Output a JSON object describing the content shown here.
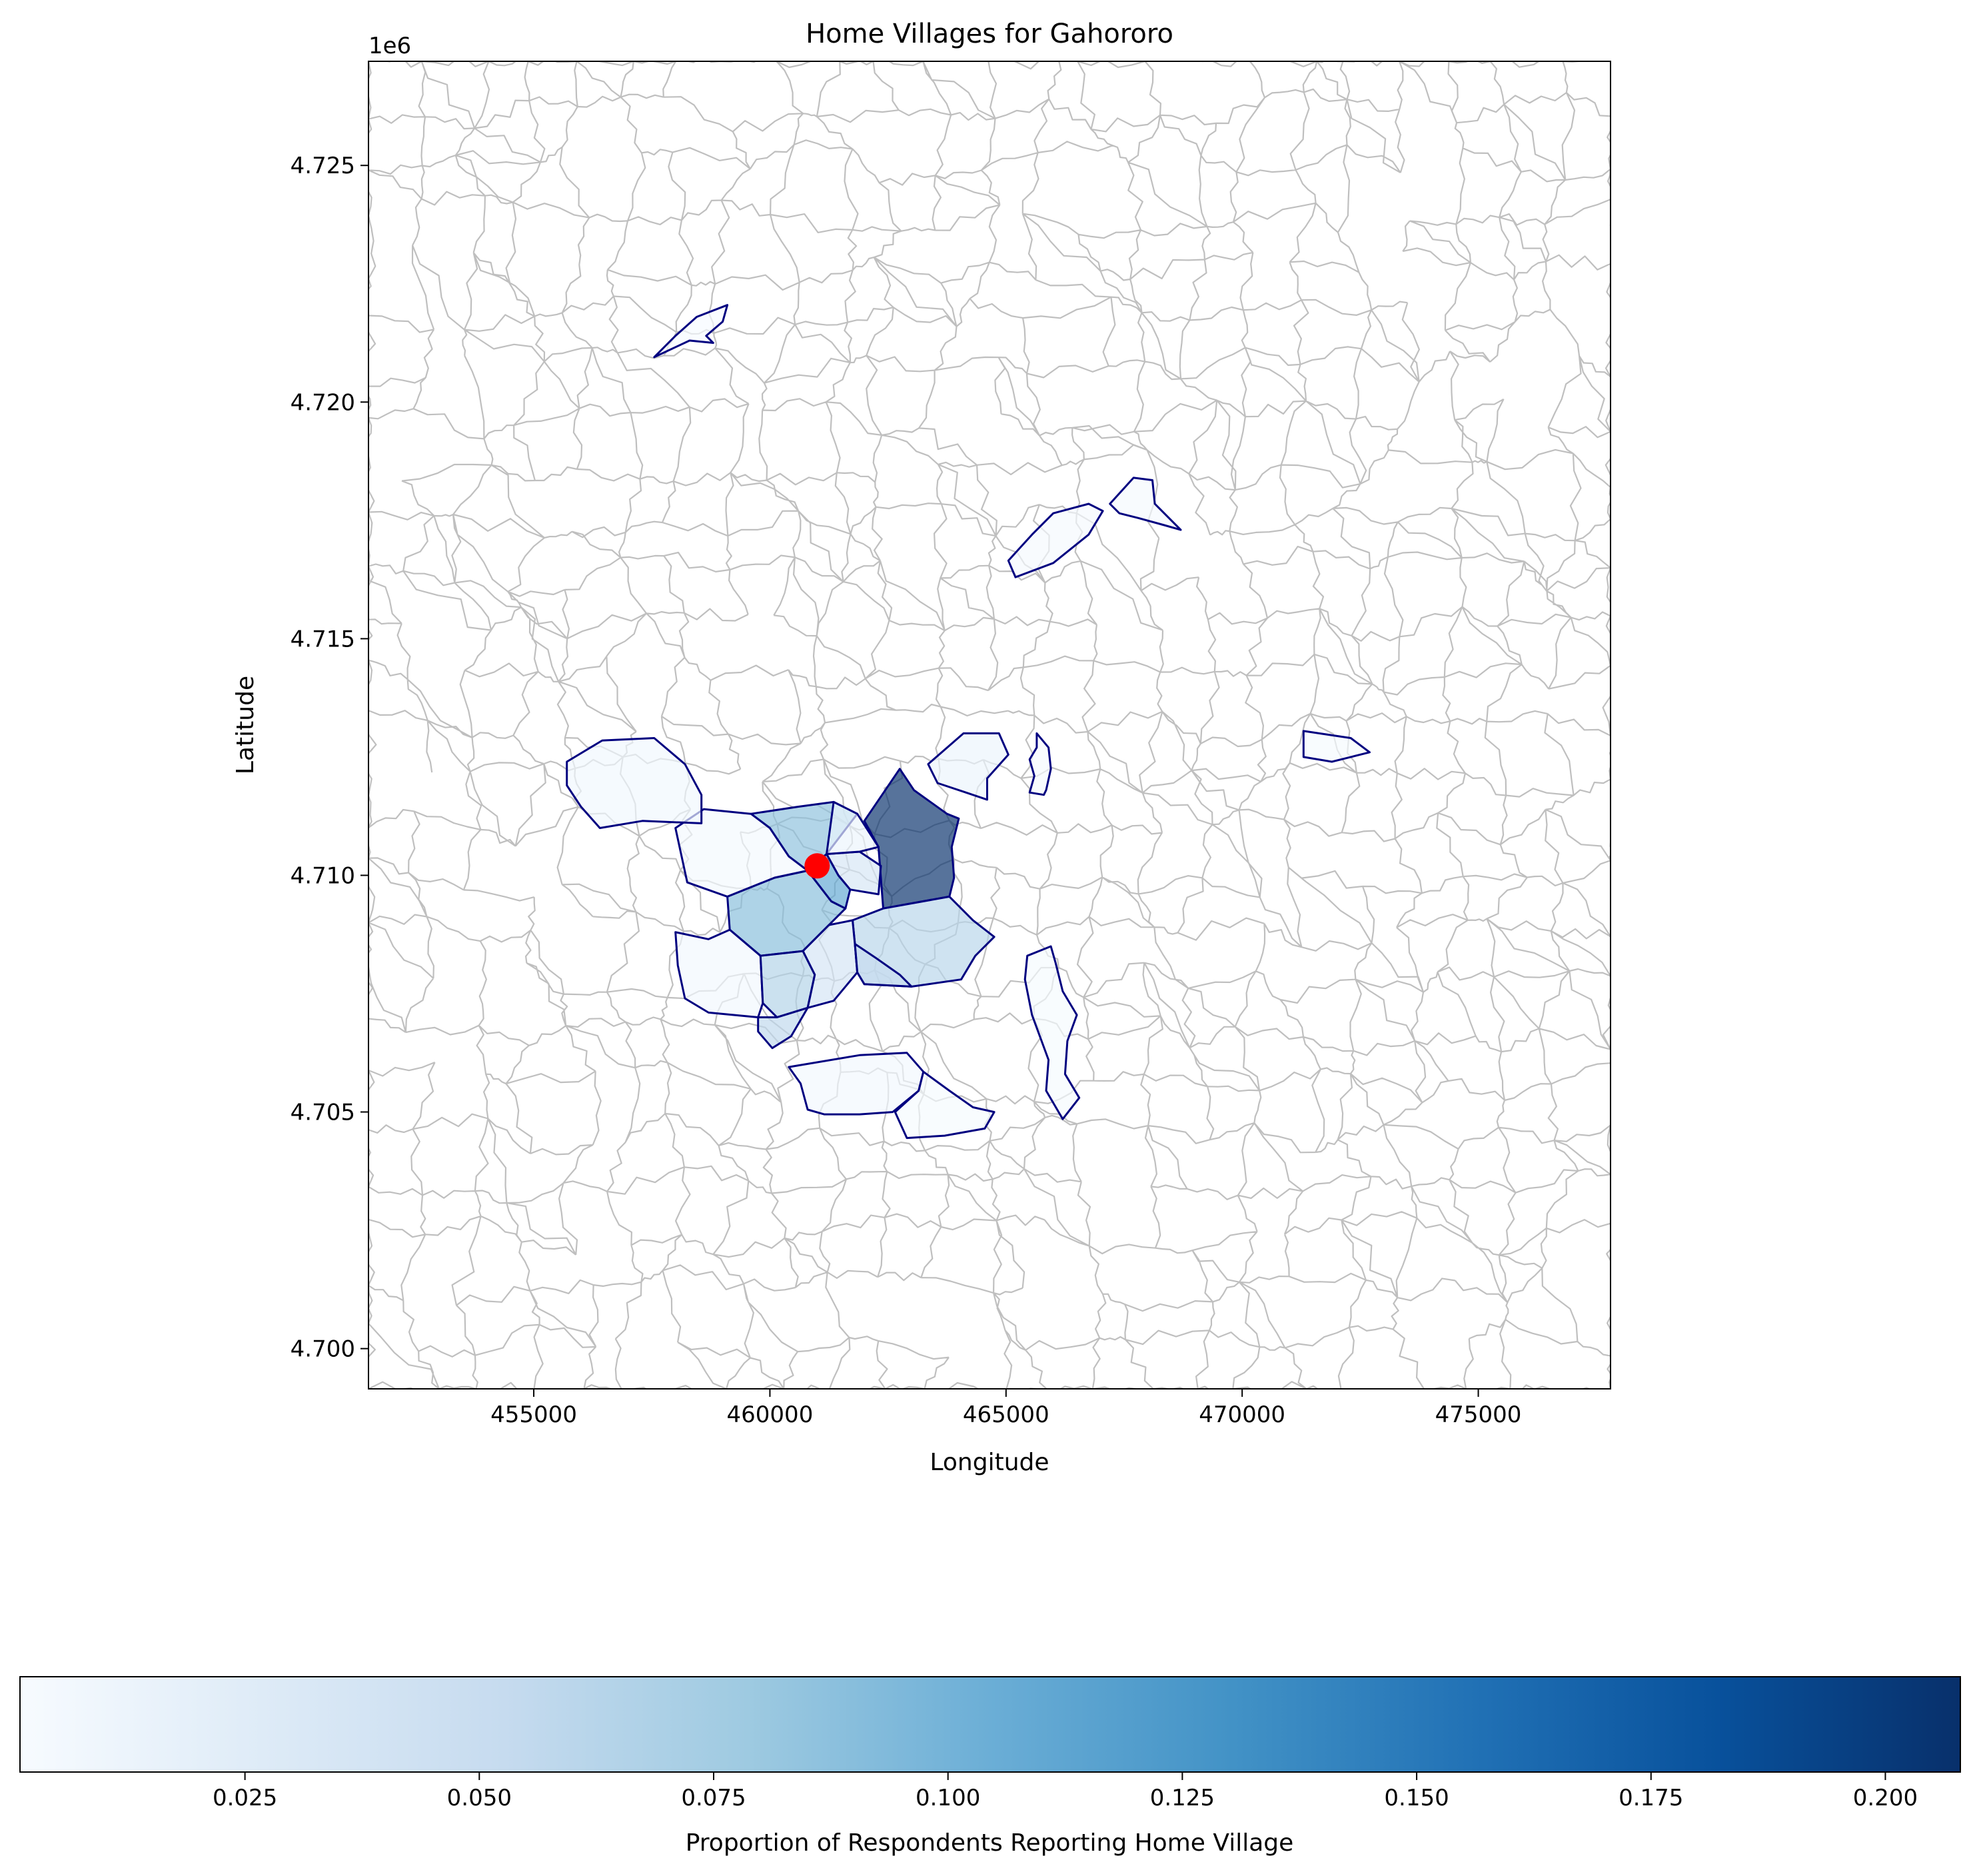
{
  "title": "Home Villages for Gahororo",
  "chart_data": {
    "type": "choropleth",
    "title": "Home Villages for Gahororo",
    "xlabel": "Longitude",
    "ylabel": "Latitude",
    "y_offset_label": "1e6",
    "xlim": [
      451500,
      477800
    ],
    "ylim": [
      4699150,
      4727200
    ],
    "x_ticks": [
      455000,
      460000,
      465000,
      470000,
      475000
    ],
    "x_tick_labels": [
      "455000",
      "460000",
      "465000",
      "470000",
      "475000"
    ],
    "y_ticks": [
      4700000,
      4705000,
      4710000,
      4715000,
      4720000,
      4725000
    ],
    "y_tick_labels": [
      "4.700",
      "4.705",
      "4.710",
      "4.715",
      "4.720",
      "4.725"
    ],
    "colormap": "Blues",
    "colorbar": {
      "label": "Proportion of Respondents Reporting Home Village",
      "min": 0.001,
      "max": 0.208,
      "ticks": [
        0.025,
        0.05,
        0.075,
        0.1,
        0.125,
        0.15,
        0.175,
        0.2
      ],
      "tick_labels": [
        "0.025",
        "0.050",
        "0.075",
        "0.100",
        "0.125",
        "0.150",
        "0.175",
        "0.200"
      ]
    },
    "marker": {
      "label": "Gahororo",
      "x": 461000,
      "y": 4710200,
      "color": "#ff0000"
    },
    "colors": {
      "background_boundaries": "#bfbfbf",
      "highlight_outline": "#000080"
    },
    "regions": [
      {
        "value": 0.208,
        "polygon": [
          [
            462000,
            4711150
          ],
          [
            462750,
            4712250
          ],
          [
            463050,
            4711800
          ],
          [
            463750,
            4711300
          ],
          [
            464000,
            4711200
          ],
          [
            463850,
            4710600
          ],
          [
            463900,
            4709950
          ],
          [
            463800,
            4709550
          ],
          [
            462400,
            4709300
          ],
          [
            462300,
            4710600
          ]
        ]
      },
      {
        "value": 0.062,
        "polygon": [
          [
            462400,
            4709300
          ],
          [
            463800,
            4709550
          ],
          [
            464300,
            4709050
          ],
          [
            464750,
            4708700
          ],
          [
            464350,
            4708300
          ],
          [
            464050,
            4707800
          ],
          [
            463000,
            4707650
          ],
          [
            462000,
            4707700
          ],
          [
            461850,
            4707950
          ],
          [
            461800,
            4708550
          ],
          [
            461750,
            4709050
          ]
        ]
      },
      {
        "value": 0.087,
        "polygon": [
          [
            459600,
            4711300
          ],
          [
            460600,
            4711450
          ],
          [
            461350,
            4711550
          ],
          [
            461850,
            4711300
          ],
          [
            461200,
            4710450
          ],
          [
            460800,
            4710100
          ],
          [
            460400,
            4710400
          ],
          [
            460000,
            4711000
          ]
        ]
      },
      {
        "value": 0.09,
        "polygon": [
          [
            459100,
            4709550
          ],
          [
            460100,
            4709950
          ],
          [
            460800,
            4710100
          ],
          [
            461300,
            4709450
          ],
          [
            461600,
            4709300
          ],
          [
            461250,
            4708950
          ],
          [
            460700,
            4708400
          ],
          [
            459800,
            4708300
          ],
          [
            459150,
            4708850
          ]
        ]
      },
      {
        "value": 0.11,
        "polygon": [
          [
            460800,
            4710100
          ],
          [
            461300,
            4709450
          ],
          [
            461600,
            4709300
          ],
          [
            461700,
            4709700
          ],
          [
            461450,
            4710000
          ],
          [
            461200,
            4710450
          ]
        ]
      },
      {
        "value": 0.035,
        "polygon": [
          [
            461200,
            4710450
          ],
          [
            461450,
            4710000
          ],
          [
            461700,
            4709700
          ],
          [
            462300,
            4709600
          ],
          [
            462350,
            4710200
          ],
          [
            461900,
            4710500
          ]
        ]
      },
      {
        "value": 0.012,
        "polygon": [
          [
            461350,
            4711550
          ],
          [
            461850,
            4711300
          ],
          [
            462300,
            4710600
          ],
          [
            461900,
            4710500
          ],
          [
            461200,
            4710450
          ]
        ]
      },
      {
        "value": 0.005,
        "polygon": [
          [
            458000,
            4711000
          ],
          [
            458600,
            4711400
          ],
          [
            459600,
            4711300
          ],
          [
            460000,
            4711000
          ],
          [
            460400,
            4710400
          ],
          [
            460800,
            4710100
          ],
          [
            460100,
            4709950
          ],
          [
            459100,
            4709550
          ],
          [
            458250,
            4709850
          ]
        ]
      },
      {
        "value": 0.008,
        "polygon": [
          [
            455700,
            4712400
          ],
          [
            456450,
            4712850
          ],
          [
            457550,
            4712900
          ],
          [
            458200,
            4712350
          ],
          [
            458550,
            4711700
          ],
          [
            458550,
            4711100
          ],
          [
            457300,
            4711150
          ],
          [
            456400,
            4711000
          ],
          [
            456000,
            4711450
          ],
          [
            455700,
            4711900
          ]
        ]
      },
      {
        "value": 0.006,
        "polygon": [
          [
            458000,
            4708800
          ],
          [
            458700,
            4708650
          ],
          [
            459150,
            4708850
          ],
          [
            459800,
            4708300
          ],
          [
            459850,
            4707300
          ],
          [
            459750,
            4707000
          ],
          [
            458700,
            4707100
          ],
          [
            458200,
            4707400
          ],
          [
            458050,
            4708100
          ]
        ]
      },
      {
        "value": 0.065,
        "polygon": [
          [
            459800,
            4708300
          ],
          [
            460700,
            4708400
          ],
          [
            460950,
            4707900
          ],
          [
            460800,
            4707200
          ],
          [
            460150,
            4707000
          ],
          [
            459850,
            4707300
          ]
        ]
      },
      {
        "value": 0.038,
        "polygon": [
          [
            460700,
            4708400
          ],
          [
            461250,
            4708950
          ],
          [
            461750,
            4709050
          ],
          [
            461800,
            4708550
          ],
          [
            461850,
            4707950
          ],
          [
            461350,
            4707350
          ],
          [
            460800,
            4707200
          ],
          [
            460950,
            4707900
          ]
        ]
      },
      {
        "value": 0.052,
        "polygon": [
          [
            461800,
            4708550
          ],
          [
            462250,
            4708250
          ],
          [
            462750,
            4707900
          ],
          [
            463000,
            4707650
          ],
          [
            462000,
            4707700
          ],
          [
            461850,
            4707950
          ]
        ]
      },
      {
        "value": 0.057,
        "polygon": [
          [
            459750,
            4707000
          ],
          [
            460150,
            4707000
          ],
          [
            460800,
            4707200
          ],
          [
            460450,
            4706600
          ],
          [
            460050,
            4706350
          ],
          [
            459750,
            4706700
          ]
        ]
      },
      {
        "value": 0.012,
        "polygon": [
          [
            463350,
            4712350
          ],
          [
            464100,
            4713000
          ],
          [
            464850,
            4713000
          ],
          [
            465050,
            4712550
          ],
          [
            464600,
            4712050
          ],
          [
            464600,
            4711600
          ],
          [
            464150,
            4711750
          ],
          [
            463550,
            4711950
          ]
        ]
      },
      {
        "value": 0.004,
        "polygon": [
          [
            465650,
            4713000
          ],
          [
            465900,
            4712700
          ],
          [
            465950,
            4712250
          ],
          [
            465850,
            4711800
          ],
          [
            465800,
            4711700
          ],
          [
            465500,
            4711750
          ],
          [
            465600,
            4712100
          ],
          [
            465500,
            4712450
          ],
          [
            465650,
            4712700
          ]
        ]
      },
      {
        "value": 0.006,
        "polygon": [
          [
            460400,
            4705950
          ],
          [
            461900,
            4706200
          ],
          [
            462900,
            4706250
          ],
          [
            463250,
            4705850
          ],
          [
            463150,
            4705450
          ],
          [
            462600,
            4705000
          ],
          [
            461900,
            4704950
          ],
          [
            461150,
            4704950
          ],
          [
            460800,
            4705050
          ],
          [
            460650,
            4705600
          ]
        ]
      },
      {
        "value": 0.003,
        "polygon": [
          [
            463250,
            4705850
          ],
          [
            463800,
            4705450
          ],
          [
            464300,
            4705100
          ],
          [
            464750,
            4705000
          ],
          [
            464550,
            4704650
          ],
          [
            463700,
            4704500
          ],
          [
            462900,
            4704450
          ],
          [
            462650,
            4705000
          ],
          [
            463150,
            4705450
          ]
        ]
      },
      {
        "value": 0.003,
        "polygon": [
          [
            465450,
            4708300
          ],
          [
            465950,
            4708500
          ],
          [
            466050,
            4708150
          ],
          [
            466200,
            4707550
          ],
          [
            466500,
            4707050
          ],
          [
            466300,
            4706500
          ],
          [
            466250,
            4705800
          ],
          [
            466550,
            4705300
          ],
          [
            466200,
            4704850
          ],
          [
            465850,
            4705450
          ],
          [
            465900,
            4706100
          ],
          [
            465550,
            4707050
          ],
          [
            465400,
            4707800
          ]
        ]
      },
      {
        "value": 0.004,
        "polygon": [
          [
            465050,
            4716650
          ],
          [
            465550,
            4717200
          ],
          [
            466000,
            4717650
          ],
          [
            466750,
            4717850
          ],
          [
            467050,
            4717700
          ],
          [
            466750,
            4717200
          ],
          [
            466000,
            4716600
          ],
          [
            465200,
            4716300
          ]
        ]
      },
      {
        "value": 0.004,
        "polygon": [
          [
            467200,
            4717850
          ],
          [
            467700,
            4718400
          ],
          [
            468100,
            4718350
          ],
          [
            468150,
            4717850
          ],
          [
            468700,
            4717300
          ],
          [
            468350,
            4717400
          ],
          [
            467800,
            4717550
          ],
          [
            467400,
            4717650
          ]
        ]
      },
      {
        "value": 0.002,
        "polygon": [
          [
            457550,
            4720950
          ],
          [
            458000,
            4721400
          ],
          [
            458450,
            4721800
          ],
          [
            459100,
            4722050
          ],
          [
            459000,
            4721700
          ],
          [
            458650,
            4721400
          ],
          [
            458800,
            4721250
          ],
          [
            458300,
            4721300
          ]
        ]
      },
      {
        "value": 0.003,
        "polygon": [
          [
            471300,
            4713050
          ],
          [
            472300,
            4712900
          ],
          [
            472700,
            4712600
          ],
          [
            472300,
            4712500
          ],
          [
            471900,
            4712400
          ],
          [
            471300,
            4712500
          ]
        ]
      }
    ]
  }
}
